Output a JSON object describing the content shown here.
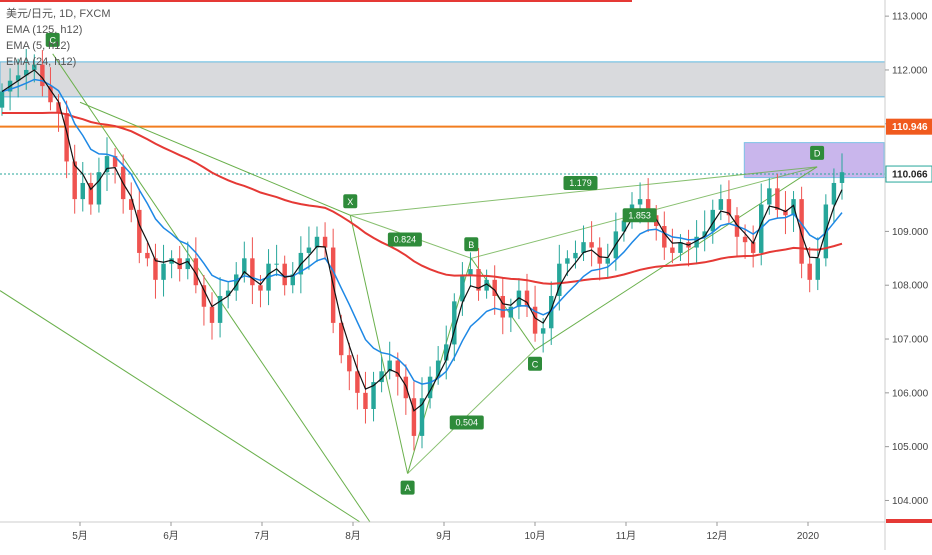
{
  "chart_data": {
    "type": "candlestick",
    "title": "美元/日元, 1D, FXCM",
    "indicators": [
      "EMA (125, h12)",
      "EMA (5, h12)",
      "EMA (24, h12)"
    ],
    "x_labels": [
      "5月",
      "6月",
      "7月",
      "8月",
      "9月",
      "10月",
      "11月",
      "12月",
      "2020"
    ],
    "y_ticks": [
      "113.000",
      "112.000",
      "111.000",
      "110.000",
      "109.000",
      "108.000",
      "107.000",
      "106.000",
      "105.000",
      "104.000"
    ],
    "ylim": [
      103.6,
      113.3
    ],
    "price_tags": [
      {
        "value": 110.946,
        "label": "110.946",
        "color": "#f05a1e"
      },
      {
        "value": 110.066,
        "label": "110.066",
        "color": "#ffffff"
      }
    ],
    "zones": [
      {
        "y1": 111.5,
        "y2": 112.15,
        "color": "#d9dadd"
      },
      {
        "y1": 110.0,
        "y2": 110.65,
        "color": "#c9b6ec"
      }
    ],
    "horizontal_lines": [
      {
        "value": 110.946,
        "color": "#f27d1f"
      },
      {
        "value": 110.066,
        "color": "#26a69a"
      }
    ],
    "pattern_points": [
      {
        "label": "X",
        "month": 2.97,
        "value": 109.3
      },
      {
        "label": "A",
        "month": 3.6,
        "value": 104.5
      },
      {
        "label": "B",
        "month": 4.3,
        "value": 108.5
      },
      {
        "label": "C",
        "month": 5.0,
        "value": 106.8
      },
      {
        "label": "D",
        "month": 8.1,
        "value": 110.2
      }
    ],
    "left_pattern_points": [
      {
        "label": "C",
        "month": -0.3,
        "value": 112.3
      }
    ],
    "ratios": [
      {
        "label": "0.824",
        "month": 3.57,
        "value": 108.85
      },
      {
        "label": "0.504",
        "month": 4.25,
        "value": 105.45
      },
      {
        "label": "1.853",
        "month": 6.15,
        "value": 109.3
      },
      {
        "label": "1.179",
        "month": 5.5,
        "value": 109.9
      }
    ],
    "close": [
      111.6,
      111.8,
      111.9,
      112.0,
      112.1,
      111.7,
      111.4,
      111.2,
      110.3,
      109.6,
      109.9,
      109.5,
      110.1,
      110.4,
      110.2,
      109.6,
      109.4,
      108.6,
      108.5,
      108.1,
      108.4,
      108.5,
      108.3,
      108.5,
      108.0,
      107.6,
      107.3,
      107.8,
      107.9,
      108.2,
      108.5,
      108.0,
      107.9,
      108.4,
      108.4,
      108.0,
      108.2,
      108.6,
      108.7,
      108.9,
      108.7,
      107.3,
      106.7,
      106.4,
      106.0,
      105.7,
      106.2,
      106.4,
      106.6,
      106.3,
      105.9,
      105.2,
      105.9,
      106.3,
      106.6,
      106.9,
      107.7,
      108.2,
      108.3,
      107.9,
      108.1,
      107.8,
      107.4,
      107.6,
      107.9,
      107.6,
      107.1,
      107.2,
      107.8,
      108.4,
      108.5,
      108.6,
      108.8,
      108.7,
      108.4,
      108.5,
      109.0,
      109.2,
      109.5,
      109.6,
      109.3,
      109.1,
      108.7,
      108.6,
      108.8,
      108.7,
      108.9,
      109.0,
      109.4,
      109.6,
      109.3,
      108.9,
      108.8,
      108.6,
      109.5,
      109.8,
      109.4,
      109.3,
      109.6,
      108.4,
      108.1,
      108.5,
      109.5,
      109.9,
      110.1
    ]
  }
}
